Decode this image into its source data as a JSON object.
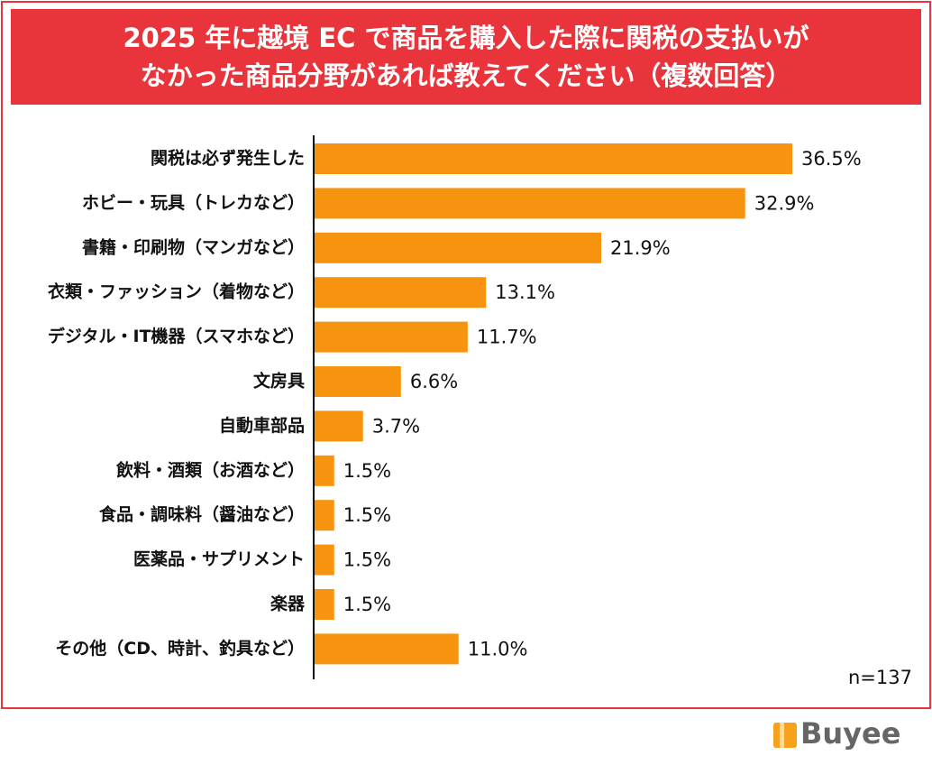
{
  "chart_data": {
    "type": "bar",
    "orientation": "horizontal",
    "title": [
      "2025 年に越境 EC で商品を購入した際に関税の支払いが",
      "なかった商品分野があれば教えてください（複数回答）"
    ],
    "categories": [
      "関税は必ず発生した",
      "ホビー・玩具（トレカなど）",
      "書籍・印刷物（マンガなど）",
      "衣類・ファッション（着物など）",
      "デジタル・IT機器（スマホなど）",
      "文房具",
      "自動車部品",
      "飲料・酒類（お酒など）",
      "食品・調味料（醤油など）",
      "医薬品・サプリメント",
      "楽器",
      "その他（CD、時計、釣具など）"
    ],
    "values": [
      36.5,
      32.9,
      21.9,
      13.1,
      11.7,
      6.6,
      3.7,
      1.5,
      1.5,
      1.5,
      1.5,
      11.0
    ],
    "value_labels": [
      "36.5%",
      "32.9%",
      "21.9%",
      "13.1%",
      "11.7%",
      "6.6%",
      "3.7%",
      "1.5%",
      "1.5%",
      "1.5%",
      "1.5%",
      "11.0%"
    ],
    "color": "#f7940f",
    "note": "n=137",
    "logo": "Buyee"
  }
}
